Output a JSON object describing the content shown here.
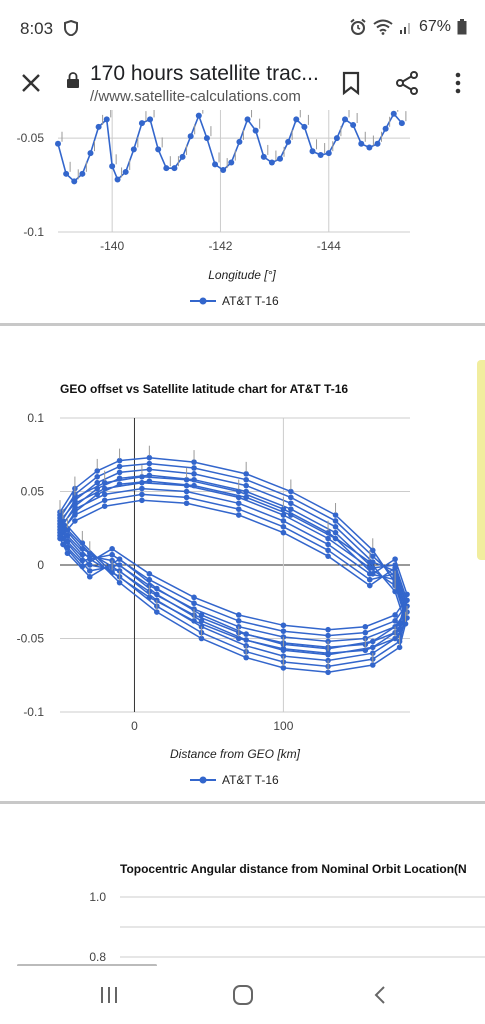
{
  "status_bar": {
    "time": "8:03",
    "battery": "67%",
    "icons": [
      "shield-icon",
      "alarm-icon",
      "wifi-icon",
      "signal-icon",
      "battery-icon"
    ]
  },
  "toolbar": {
    "title": "170 hours satellite trac...",
    "url": "//www.satellite-calculations.com",
    "icons": [
      "close-icon",
      "lock-icon",
      "bookmark-icon",
      "share-icon",
      "more-icon"
    ]
  },
  "colors": {
    "series": "#3366cc",
    "grid": "#cccccc",
    "axis": "#333333",
    "divider": "#c8c8c8"
  },
  "chart_data": [
    {
      "type": "line",
      "title": "",
      "xlabel": "Longitude [°]",
      "ylabel": "",
      "x_ticks": [
        "-140",
        "-142",
        "-144"
      ],
      "y_ticks": [
        "-0.05",
        "-0.1"
      ],
      "xlim": [
        -139,
        -145.5
      ],
      "ylim": [
        -0.1,
        -0.035
      ],
      "grid": true,
      "legend_position": "bottom",
      "series": [
        {
          "name": "AT&T T-16",
          "x": [
            -139.0,
            -139.15,
            -139.3,
            -139.45,
            -139.6,
            -139.75,
            -139.9,
            -140.0,
            -140.1,
            -140.25,
            -140.4,
            -140.55,
            -140.7,
            -140.85,
            -141.0,
            -141.15,
            -141.3,
            -141.45,
            -141.6,
            -141.75,
            -141.9,
            -142.05,
            -142.2,
            -142.35,
            -142.5,
            -142.65,
            -142.8,
            -142.95,
            -143.1,
            -143.25,
            -143.4,
            -143.55,
            -143.7,
            -143.85,
            -144.0,
            -144.15,
            -144.3,
            -144.45,
            -144.6,
            -144.75,
            -144.9,
            -145.05,
            -145.2,
            -145.35
          ],
          "y": [
            -0.053,
            -0.069,
            -0.073,
            -0.069,
            -0.058,
            -0.044,
            -0.04,
            -0.065,
            -0.072,
            -0.068,
            -0.056,
            -0.042,
            -0.04,
            -0.056,
            -0.066,
            -0.066,
            -0.06,
            -0.049,
            -0.038,
            -0.05,
            -0.064,
            -0.067,
            -0.063,
            -0.052,
            -0.04,
            -0.046,
            -0.06,
            -0.063,
            -0.061,
            -0.052,
            -0.04,
            -0.044,
            -0.057,
            -0.059,
            -0.058,
            -0.05,
            -0.04,
            -0.043,
            -0.053,
            -0.055,
            -0.053,
            -0.045,
            -0.037,
            -0.042
          ]
        }
      ]
    },
    {
      "type": "line",
      "title": "GEO offset vs Satellite latitude chart for AT&T T-16",
      "xlabel": "Distance from GEO [km]",
      "ylabel": "",
      "x_ticks": [
        "0",
        "100"
      ],
      "y_ticks": [
        "0.1",
        "0.05",
        "0",
        "-0.05",
        "-0.1"
      ],
      "xlim": [
        -50,
        185
      ],
      "ylim": [
        -0.1,
        0.1
      ],
      "grid": true,
      "legend_position": "bottom",
      "series": [
        {
          "name": "AT&T T-16",
          "x": [
            -50,
            -40,
            -25,
            -10,
            10,
            40,
            75,
            105,
            135,
            160,
            175,
            183,
            178,
            160,
            130,
            100,
            75,
            45,
            15,
            -10,
            -30,
            -45,
            -50,
            -40,
            -20,
            5,
            35,
            70,
            100,
            130,
            158,
            175,
            182,
            175,
            155,
            130,
            100,
            70,
            40,
            10,
            -15,
            -35,
            -48
          ],
          "y": [
            0.036,
            0.052,
            0.064,
            0.071,
            0.073,
            0.07,
            0.062,
            0.05,
            0.034,
            0.01,
            -0.012,
            -0.036,
            -0.056,
            -0.068,
            -0.073,
            -0.07,
            -0.063,
            -0.05,
            -0.032,
            -0.012,
            0.008,
            0.024,
            0.034,
            0.046,
            0.056,
            0.06,
            0.058,
            0.05,
            0.038,
            0.022,
            0.002,
            -0.018,
            -0.04,
            -0.05,
            -0.058,
            -0.06,
            -0.057,
            -0.05,
            -0.038,
            -0.022,
            -0.005,
            0.015,
            0.03
          ]
        }
      ]
    },
    {
      "type": "line",
      "title": "Topocentric Angular distance from Nominal Orbit Location(N",
      "xlabel": "",
      "ylabel": "",
      "y_ticks": [
        "1.0",
        "0.8"
      ],
      "grid": true,
      "series": []
    }
  ]
}
